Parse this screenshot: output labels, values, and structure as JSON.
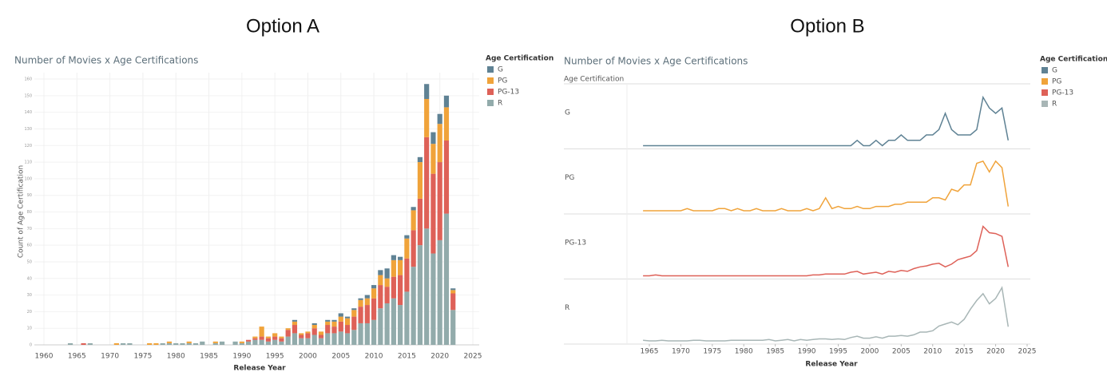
{
  "header": {
    "option_a": "Option A",
    "option_b": "Option B"
  },
  "chart_data": [
    {
      "type": "bar",
      "stacked": true,
      "title": "Number of Movies x Age Certifications",
      "x_label": "Release Year",
      "y_label": "Count of Age Certification",
      "legend_title": "Age Certification",
      "x": [
        1964,
        1965,
        1966,
        1967,
        1968,
        1969,
        1970,
        1971,
        1972,
        1973,
        1974,
        1975,
        1976,
        1977,
        1978,
        1979,
        1980,
        1981,
        1982,
        1983,
        1984,
        1985,
        1986,
        1987,
        1988,
        1989,
        1990,
        1991,
        1992,
        1993,
        1994,
        1995,
        1996,
        1997,
        1998,
        1999,
        2000,
        2001,
        2002,
        2003,
        2004,
        2005,
        2006,
        2007,
        2008,
        2009,
        2010,
        2011,
        2012,
        2013,
        2014,
        2015,
        2016,
        2017,
        2018,
        2019,
        2020,
        2021,
        2022
      ],
      "xlim": [
        1960,
        2025
      ],
      "xticks": [
        1960,
        1965,
        1970,
        1975,
        1980,
        1985,
        1990,
        1995,
        2000,
        2005,
        2010,
        2015,
        2020,
        2025
      ],
      "ylim": [
        0,
        160
      ],
      "yticks": [
        0,
        10,
        20,
        30,
        40,
        50,
        60,
        70,
        80,
        90,
        100,
        110,
        120,
        130,
        140,
        150,
        160
      ],
      "grid": true,
      "series": [
        {
          "name": "R",
          "color": "#92abab",
          "values": [
            1,
            0,
            0,
            1,
            0,
            0,
            0,
            0,
            1,
            1,
            0,
            0,
            0,
            0,
            1,
            1,
            1,
            1,
            1,
            1,
            2,
            0,
            1,
            2,
            0,
            2,
            1,
            2,
            3,
            3,
            2,
            3,
            2,
            5,
            7,
            4,
            4,
            6,
            4,
            7,
            7,
            8,
            7,
            9,
            13,
            13,
            15,
            22,
            25,
            28,
            24,
            32,
            47,
            60,
            70,
            55,
            63,
            79,
            21
          ]
        },
        {
          "name": "PG-13",
          "color": "#de6158",
          "values": [
            0,
            0,
            1,
            0,
            0,
            0,
            0,
            0,
            0,
            0,
            0,
            0,
            0,
            0,
            0,
            0,
            0,
            0,
            0,
            0,
            0,
            0,
            0,
            0,
            0,
            0,
            0,
            1,
            1,
            2,
            2,
            2,
            2,
            4,
            5,
            2,
            3,
            4,
            2,
            5,
            4,
            6,
            5,
            8,
            10,
            11,
            13,
            14,
            10,
            13,
            18,
            20,
            22,
            28,
            55,
            48,
            47,
            44,
            10
          ]
        },
        {
          "name": "PG",
          "color": "#f0a33a",
          "values": [
            0,
            0,
            0,
            0,
            0,
            0,
            0,
            1,
            0,
            0,
            0,
            0,
            1,
            1,
            0,
            1,
            0,
            0,
            1,
            0,
            0,
            0,
            1,
            0,
            0,
            0,
            1,
            0,
            1,
            6,
            1,
            2,
            1,
            1,
            2,
            1,
            1,
            2,
            2,
            2,
            3,
            3,
            4,
            4,
            4,
            4,
            6,
            6,
            5,
            10,
            9,
            12,
            12,
            22,
            23,
            18,
            23,
            20,
            2
          ]
        },
        {
          "name": "G",
          "color": "#5f8294",
          "values": [
            0,
            0,
            0,
            0,
            0,
            0,
            0,
            0,
            0,
            0,
            0,
            0,
            0,
            0,
            0,
            0,
            0,
            0,
            0,
            0,
            0,
            0,
            0,
            0,
            0,
            0,
            0,
            0,
            0,
            0,
            0,
            0,
            0,
            0,
            1,
            0,
            0,
            1,
            0,
            1,
            1,
            2,
            1,
            1,
            1,
            2,
            2,
            3,
            6,
            3,
            2,
            2,
            2,
            3,
            9,
            7,
            6,
            7,
            1
          ]
        }
      ]
    },
    {
      "type": "line",
      "facets": true,
      "title": "Number of Movies x Age Certifications",
      "x_label": "Release Year",
      "legend_title": "Age Certification",
      "facet_title": "Age Certification",
      "x": [
        1964,
        1965,
        1966,
        1967,
        1968,
        1969,
        1970,
        1971,
        1972,
        1973,
        1974,
        1975,
        1976,
        1977,
        1978,
        1979,
        1980,
        1981,
        1982,
        1983,
        1984,
        1985,
        1986,
        1987,
        1988,
        1989,
        1990,
        1991,
        1992,
        1993,
        1994,
        1995,
        1996,
        1997,
        1998,
        1999,
        2000,
        2001,
        2002,
        2003,
        2004,
        2005,
        2006,
        2007,
        2008,
        2009,
        2010,
        2011,
        2012,
        2013,
        2014,
        2015,
        2016,
        2017,
        2018,
        2019,
        2020,
        2021,
        2022
      ],
      "xlim": [
        1960,
        2025
      ],
      "xticks": [
        1965,
        1970,
        1975,
        1980,
        1985,
        1990,
        1995,
        2000,
        2005,
        2010,
        2015,
        2020,
        2025
      ],
      "series": [
        {
          "name": "G",
          "color": "#5f8294",
          "ylim": [
            0,
            10
          ],
          "values": [
            0,
            0,
            0,
            0,
            0,
            0,
            0,
            0,
            0,
            0,
            0,
            0,
            0,
            0,
            0,
            0,
            0,
            0,
            0,
            0,
            0,
            0,
            0,
            0,
            0,
            0,
            0,
            0,
            0,
            0,
            0,
            0,
            0,
            0,
            1,
            0,
            0,
            1,
            0,
            1,
            1,
            2,
            1,
            1,
            1,
            2,
            2,
            3,
            6,
            3,
            2,
            2,
            2,
            3,
            9,
            7,
            6,
            7,
            1
          ]
        },
        {
          "name": "PG",
          "color": "#f0a33a",
          "ylim": [
            0,
            25
          ],
          "values": [
            0,
            0,
            0,
            0,
            0,
            0,
            0,
            1,
            0,
            0,
            0,
            0,
            1,
            1,
            0,
            1,
            0,
            0,
            1,
            0,
            0,
            0,
            1,
            0,
            0,
            0,
            1,
            0,
            1,
            6,
            1,
            2,
            1,
            1,
            2,
            1,
            1,
            2,
            2,
            2,
            3,
            3,
            4,
            4,
            4,
            4,
            6,
            6,
            5,
            10,
            9,
            12,
            12,
            22,
            23,
            18,
            23,
            20,
            2
          ]
        },
        {
          "name": "PG-13",
          "color": "#de6158",
          "ylim": [
            0,
            60
          ],
          "values": [
            0,
            0,
            1,
            0,
            0,
            0,
            0,
            0,
            0,
            0,
            0,
            0,
            0,
            0,
            0,
            0,
            0,
            0,
            0,
            0,
            0,
            0,
            0,
            0,
            0,
            0,
            0,
            1,
            1,
            2,
            2,
            2,
            2,
            4,
            5,
            2,
            3,
            4,
            2,
            5,
            4,
            6,
            5,
            8,
            10,
            11,
            13,
            14,
            10,
            13,
            18,
            20,
            22,
            28,
            55,
            48,
            47,
            44,
            10
          ]
        },
        {
          "name": "R",
          "color": "#a8b6b6",
          "ylim": [
            0,
            80
          ],
          "values": [
            1,
            0,
            0,
            1,
            0,
            0,
            0,
            0,
            1,
            1,
            0,
            0,
            0,
            0,
            1,
            1,
            1,
            1,
            1,
            1,
            2,
            0,
            1,
            2,
            0,
            2,
            1,
            2,
            3,
            3,
            2,
            3,
            2,
            5,
            7,
            4,
            4,
            6,
            4,
            7,
            7,
            8,
            7,
            9,
            13,
            13,
            15,
            22,
            25,
            28,
            24,
            32,
            47,
            60,
            70,
            55,
            63,
            79,
            21
          ]
        }
      ]
    }
  ]
}
